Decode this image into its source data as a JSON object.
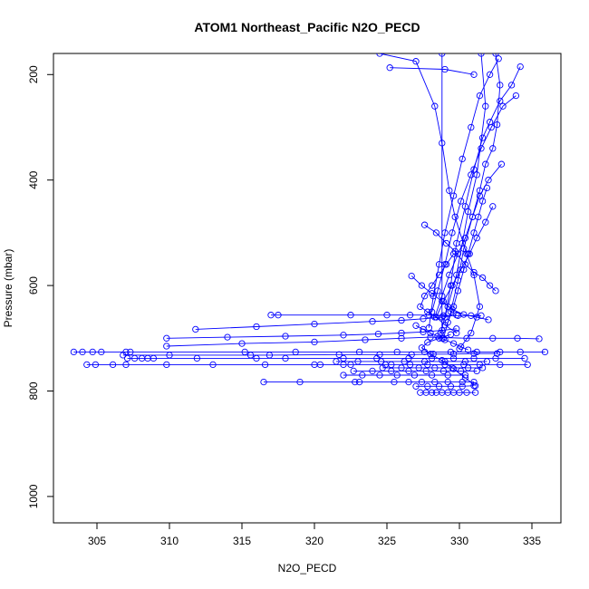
{
  "chart_data": {
    "type": "line",
    "title": "ATOM1 Northeast_Pacific N2O_PECD",
    "xlabel": "N2O_PECD",
    "ylabel": "Pressure (mbar)",
    "xlim": [
      302,
      337
    ],
    "ylim": [
      1050,
      160
    ],
    "y_reversed": true,
    "xticks": [
      305,
      310,
      315,
      320,
      325,
      330,
      335
    ],
    "yticks": [
      200,
      400,
      600,
      800,
      1000
    ],
    "series_color": "#0000ff",
    "marker": "open-circle",
    "series": [
      {
        "values": [
          [
            328.8,
            160
          ],
          [
            328.8,
            700
          ]
        ]
      },
      {
        "values": [
          [
            324.5,
            160
          ],
          [
            327.0,
            175
          ],
          [
            328.3,
            260
          ],
          [
            328.8,
            330
          ],
          [
            329.3,
            420
          ],
          [
            329.7,
            470
          ],
          [
            330.5,
            540
          ],
          [
            331.0,
            580
          ],
          [
            331.4,
            640
          ],
          [
            330.8,
            690
          ],
          [
            330.0,
            720
          ]
        ]
      },
      {
        "values": [
          [
            325.2,
            187
          ],
          [
            329.0,
            190
          ],
          [
            331.0,
            200
          ]
        ]
      },
      {
        "values": [
          [
            332.5,
            160
          ],
          [
            332.8,
            220
          ],
          [
            332.6,
            295
          ],
          [
            332.3,
            340
          ],
          [
            331.8,
            370
          ],
          [
            331.4,
            420
          ],
          [
            330.9,
            470
          ],
          [
            330.3,
            530
          ],
          [
            329.9,
            590
          ],
          [
            329.4,
            650
          ],
          [
            328.9,
            700
          ]
        ]
      },
      {
        "values": [
          [
            331.5,
            160
          ],
          [
            331.8,
            260
          ],
          [
            331.2,
            390
          ],
          [
            330.6,
            460
          ],
          [
            330.2,
            520
          ],
          [
            329.8,
            580
          ],
          [
            329.2,
            640
          ],
          [
            328.7,
            690
          ]
        ]
      },
      {
        "values": [
          [
            334.2,
            185
          ],
          [
            333.6,
            220
          ],
          [
            332.8,
            250
          ],
          [
            332.1,
            290
          ],
          [
            331.6,
            320
          ],
          [
            331.0,
            380
          ],
          [
            330.4,
            450
          ],
          [
            329.8,
            520
          ],
          [
            329.4,
            600
          ],
          [
            329.0,
            660
          ]
        ]
      },
      {
        "values": [
          [
            332.7,
            170
          ],
          [
            332.1,
            200
          ],
          [
            331.4,
            240
          ],
          [
            330.8,
            300
          ],
          [
            330.2,
            360
          ],
          [
            329.6,
            430
          ],
          [
            329.0,
            500
          ],
          [
            328.6,
            560
          ],
          [
            328.2,
            620
          ],
          [
            327.9,
            680
          ]
        ]
      },
      {
        "values": [
          [
            333.9,
            240
          ],
          [
            333.0,
            260
          ],
          [
            332.2,
            300
          ],
          [
            331.5,
            340
          ],
          [
            330.8,
            390
          ],
          [
            330.1,
            440
          ],
          [
            329.5,
            500
          ],
          [
            329.0,
            560
          ],
          [
            328.5,
            610
          ],
          [
            328.1,
            650
          ]
        ]
      },
      {
        "values": [
          [
            332.9,
            370
          ],
          [
            332.0,
            400
          ],
          [
            331.4,
            430
          ],
          [
            330.9,
            470
          ],
          [
            330.4,
            510
          ],
          [
            329.9,
            540
          ],
          [
            329.3,
            580
          ],
          [
            328.8,
            620
          ],
          [
            328.3,
            660
          ]
        ]
      },
      {
        "values": [
          [
            327.6,
            485
          ],
          [
            328.4,
            500
          ],
          [
            329.1,
            520
          ],
          [
            329.7,
            535
          ],
          [
            330.4,
            560
          ],
          [
            331.0,
            575
          ],
          [
            331.6,
            585
          ],
          [
            332.1,
            600
          ],
          [
            332.5,
            610
          ]
        ]
      },
      {
        "values": [
          [
            331.9,
            415
          ],
          [
            331.6,
            440
          ],
          [
            331.3,
            470
          ],
          [
            331.0,
            500
          ],
          [
            330.6,
            540
          ],
          [
            330.3,
            570
          ],
          [
            329.9,
            610
          ],
          [
            329.6,
            640
          ],
          [
            329.2,
            670
          ]
        ]
      },
      {
        "values": [
          [
            332.3,
            450
          ],
          [
            331.8,
            480
          ],
          [
            331.2,
            510
          ],
          [
            330.7,
            540
          ],
          [
            330.1,
            570
          ],
          [
            329.5,
            600
          ],
          [
            328.9,
            630
          ],
          [
            328.4,
            660
          ]
        ]
      },
      {
        "values": [
          [
            329.6,
            540
          ],
          [
            329.1,
            560
          ],
          [
            328.6,
            580
          ],
          [
            328.1,
            600
          ],
          [
            327.6,
            620
          ],
          [
            327.3,
            640
          ],
          [
            327.8,
            650
          ],
          [
            328.4,
            660
          ],
          [
            329.0,
            675
          ],
          [
            329.8,
            690
          ]
        ]
      },
      {
        "values": [
          [
            326.7,
            582
          ],
          [
            327.4,
            600
          ],
          [
            328.1,
            615
          ],
          [
            328.8,
            630
          ],
          [
            329.5,
            645
          ],
          [
            330.3,
            655
          ],
          [
            331.2,
            660
          ],
          [
            332.0,
            665
          ]
        ]
      },
      {
        "values": [
          [
            317.0,
            656
          ],
          [
            317.5,
            656
          ],
          [
            322.5,
            656
          ],
          [
            325.0,
            656
          ],
          [
            326.6,
            656
          ],
          [
            327.9,
            656
          ],
          [
            328.9,
            657
          ],
          [
            329.9,
            657
          ],
          [
            330.8,
            657
          ],
          [
            331.5,
            657
          ]
        ]
      },
      {
        "values": [
          [
            311.8,
            683
          ],
          [
            316.0,
            678
          ],
          [
            320.0,
            673
          ],
          [
            324.0,
            668
          ],
          [
            326.0,
            666
          ],
          [
            327.5,
            663
          ],
          [
            328.8,
            660
          ],
          [
            329.8,
            656
          ]
        ]
      },
      {
        "values": [
          [
            309.8,
            700
          ],
          [
            314.0,
            698
          ],
          [
            318.0,
            696
          ],
          [
            322.0,
            694
          ],
          [
            324.4,
            692
          ],
          [
            326.0,
            690
          ],
          [
            327.5,
            688
          ],
          [
            328.8,
            685
          ],
          [
            329.8,
            682
          ]
        ]
      },
      {
        "values": [
          [
            309.8,
            715
          ],
          [
            315.0,
            710
          ],
          [
            320.0,
            707
          ],
          [
            323.5,
            703
          ],
          [
            326.0,
            700
          ],
          [
            328.0,
            698
          ],
          [
            330.5,
            700
          ],
          [
            332.3,
            700
          ],
          [
            334.0,
            700
          ],
          [
            335.5,
            701
          ]
        ]
      },
      {
        "values": [
          [
            303.4,
            726
          ],
          [
            304.0,
            726
          ],
          [
            304.7,
            726
          ],
          [
            305.3,
            726
          ],
          [
            307.0,
            726
          ],
          [
            307.3,
            726
          ],
          [
            315.2,
            726
          ],
          [
            318.7,
            726
          ],
          [
            323.1,
            726
          ],
          [
            325.7,
            726
          ],
          [
            327.6,
            726
          ],
          [
            329.4,
            726
          ],
          [
            331.2,
            726
          ],
          [
            332.8,
            726
          ],
          [
            334.2,
            726
          ],
          [
            335.9,
            726
          ]
        ]
      },
      {
        "values": [
          [
            306.8,
            732
          ],
          [
            310.0,
            732
          ],
          [
            315.6,
            732
          ],
          [
            316.9,
            732
          ],
          [
            321.7,
            731
          ],
          [
            324.5,
            731
          ],
          [
            326.7,
            731
          ],
          [
            328.2,
            730
          ],
          [
            329.6,
            730
          ],
          [
            331.0,
            729
          ],
          [
            332.6,
            729
          ]
        ]
      },
      {
        "values": [
          [
            307.1,
            738
          ],
          [
            307.6,
            738
          ],
          [
            308.1,
            738
          ],
          [
            308.5,
            738
          ],
          [
            308.9,
            738
          ],
          [
            311.9,
            738
          ],
          [
            316.0,
            738
          ],
          [
            318.0,
            738
          ],
          [
            322.0,
            738
          ],
          [
            324.3,
            738
          ],
          [
            326.5,
            738
          ],
          [
            328.1,
            738
          ],
          [
            329.6,
            738
          ],
          [
            331.0,
            738
          ],
          [
            332.5,
            738
          ],
          [
            334.5,
            738
          ]
        ]
      },
      {
        "values": [
          [
            321.5,
            744
          ],
          [
            323.0,
            744
          ],
          [
            324.6,
            744
          ],
          [
            326.2,
            744
          ],
          [
            327.6,
            744
          ],
          [
            329.0,
            744
          ],
          [
            330.4,
            744
          ],
          [
            331.9,
            744
          ]
        ]
      },
      {
        "values": [
          [
            304.3,
            750
          ],
          [
            304.9,
            750
          ],
          [
            306.1,
            750
          ],
          [
            307.0,
            750
          ],
          [
            309.8,
            750
          ],
          [
            313.0,
            750
          ],
          [
            316.6,
            750
          ],
          [
            320.0,
            750
          ],
          [
            320.4,
            750
          ],
          [
            322.0,
            750
          ],
          [
            322.5,
            750
          ],
          [
            324.9,
            750
          ],
          [
            325.3,
            750
          ],
          [
            326.6,
            750
          ],
          [
            327.8,
            750
          ],
          [
            329.0,
            750
          ],
          [
            330.3,
            750
          ],
          [
            331.4,
            750
          ],
          [
            332.8,
            750
          ],
          [
            334.7,
            750
          ]
        ]
      },
      {
        "values": [
          [
            324.7,
            756
          ],
          [
            326.0,
            756
          ],
          [
            327.2,
            756
          ],
          [
            328.3,
            756
          ],
          [
            329.5,
            756
          ],
          [
            330.6,
            756
          ],
          [
            331.6,
            756
          ]
        ]
      },
      {
        "values": [
          [
            322.7,
            762
          ],
          [
            324.0,
            762
          ],
          [
            325.3,
            762
          ],
          [
            326.5,
            762
          ],
          [
            327.7,
            762
          ],
          [
            328.9,
            762
          ],
          [
            330.1,
            762
          ],
          [
            331.2,
            762
          ]
        ]
      },
      {
        "values": [
          [
            322.0,
            770
          ],
          [
            323.3,
            770
          ],
          [
            324.5,
            770
          ],
          [
            325.7,
            770
          ],
          [
            326.9,
            770
          ],
          [
            328.1,
            770
          ],
          [
            329.2,
            770
          ],
          [
            330.4,
            770
          ]
        ]
      },
      {
        "values": [
          [
            316.5,
            783
          ],
          [
            319.0,
            783
          ],
          [
            322.8,
            783
          ],
          [
            323.1,
            783
          ],
          [
            325.5,
            783
          ],
          [
            326.5,
            783
          ],
          [
            327.4,
            783
          ],
          [
            328.3,
            783
          ],
          [
            329.2,
            783
          ],
          [
            330.2,
            783
          ],
          [
            331.0,
            783
          ]
        ]
      },
      {
        "values": [
          [
            327.0,
            791
          ],
          [
            327.8,
            791
          ],
          [
            328.6,
            791
          ],
          [
            329.4,
            791
          ],
          [
            330.2,
            791
          ],
          [
            331.0,
            790
          ]
        ]
      },
      {
        "values": [
          [
            327.3,
            803
          ],
          [
            327.7,
            803
          ],
          [
            328.1,
            803
          ],
          [
            328.4,
            803
          ],
          [
            328.8,
            803
          ],
          [
            329.2,
            803
          ],
          [
            329.6,
            803
          ],
          [
            330.0,
            803
          ],
          [
            330.5,
            803
          ],
          [
            331.1,
            803
          ]
        ]
      },
      {
        "values": [
          [
            331.1,
            790
          ],
          [
            330.4,
            775
          ],
          [
            329.6,
            758
          ],
          [
            328.8,
            742
          ],
          [
            328.0,
            730
          ],
          [
            327.4,
            718
          ],
          [
            327.8,
            708
          ],
          [
            328.6,
            700
          ],
          [
            329.4,
            693
          ]
        ]
      },
      {
        "values": [
          [
            327.0,
            676
          ],
          [
            327.5,
            683
          ],
          [
            328.0,
            690
          ],
          [
            328.5,
            696
          ],
          [
            329.0,
            703
          ],
          [
            329.6,
            710
          ],
          [
            330.1,
            716
          ],
          [
            330.6,
            722
          ]
        ]
      }
    ]
  }
}
